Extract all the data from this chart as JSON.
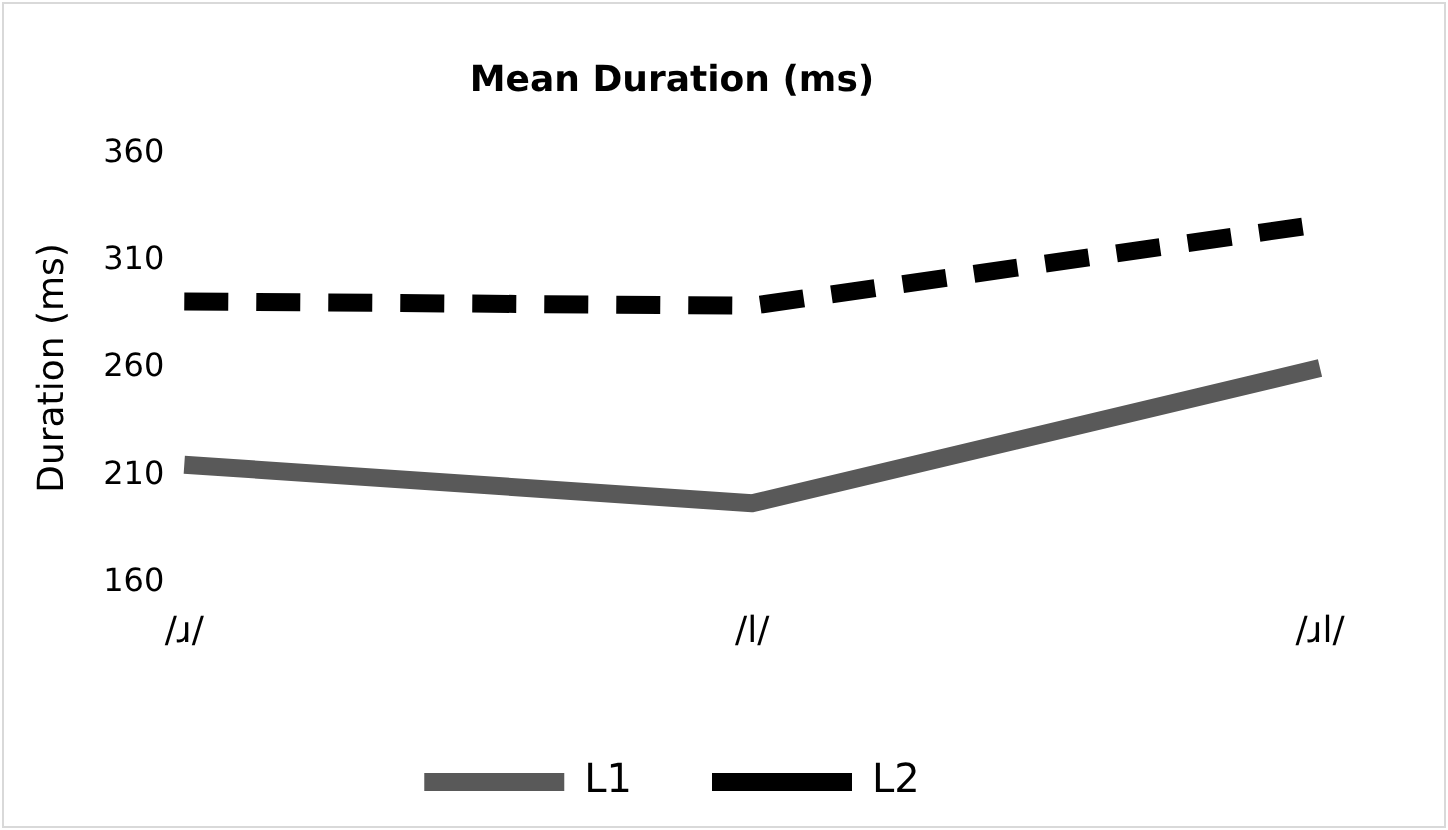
{
  "chart_data": {
    "type": "line",
    "title": "Mean Duration (ms)",
    "ylabel": "Duration (ms)",
    "categories": [
      "/ɹ/",
      "/l/",
      "/ɹl/"
    ],
    "series": [
      {
        "name": "L1",
        "color": "#595959",
        "values": [
          215,
          197,
          260
        ]
      },
      {
        "name": "L2",
        "color": "#000000",
        "values": [
          291,
          289,
          327
        ],
        "line_style": "dashed"
      }
    ],
    "ylim": [
      160,
      360
    ],
    "yticks": [
      160,
      210,
      260,
      310,
      360
    ],
    "grid": false,
    "legend": "bottom",
    "marker": "none"
  }
}
